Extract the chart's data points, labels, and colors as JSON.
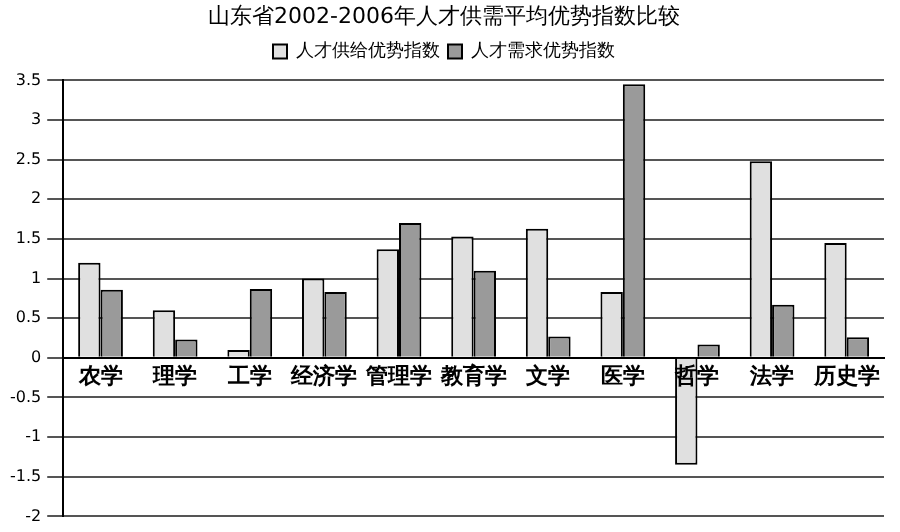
{
  "chart_data": {
    "type": "bar",
    "title": "山东省2002-2006年人才供需平均优势指数比较",
    "categories": [
      "农学",
      "理学",
      "工学",
      "经济学",
      "管理学",
      "教育学",
      "文学",
      "医学",
      "哲学",
      "法学",
      "历史学"
    ],
    "series": [
      {
        "name": "人才供给优势指数",
        "color": "#e0e0e0",
        "values": [
          1.2,
          0.6,
          0.1,
          1.0,
          1.37,
          1.53,
          1.63,
          0.83,
          -1.35,
          2.48,
          1.45
        ]
      },
      {
        "name": "人才需求优势指数",
        "color": "#9a9a9a",
        "values": [
          0.86,
          0.23,
          0.87,
          0.83,
          1.7,
          1.1,
          0.27,
          3.45,
          0.17,
          0.67,
          0.26
        ]
      }
    ],
    "ylim": [
      -2,
      3.5
    ],
    "yticks": [
      -2,
      -1.5,
      -1,
      -0.5,
      0,
      0.5,
      1,
      1.5,
      2,
      2.5,
      3,
      3.5
    ],
    "grid": "y",
    "legend": "top"
  }
}
